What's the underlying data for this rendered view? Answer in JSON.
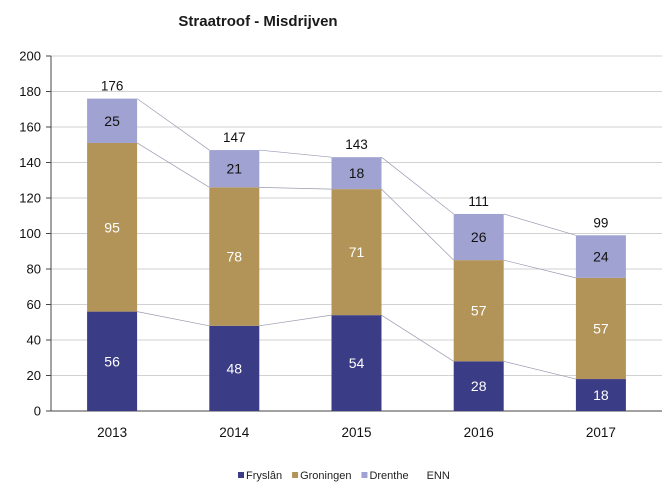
{
  "chart_data": {
    "type": "bar",
    "stacked": true,
    "title": "Straatroof - Misdrijven",
    "categories": [
      "2013",
      "2014",
      "2015",
      "2016",
      "2017"
    ],
    "series": [
      {
        "name": "Fryslân",
        "values": [
          56,
          48,
          54,
          28,
          18
        ],
        "color": "#3b3c86",
        "label_color": "#ffffff"
      },
      {
        "name": "Groningen",
        "values": [
          95,
          78,
          71,
          57,
          57
        ],
        "color": "#b39458",
        "label_color": "#ffffff"
      },
      {
        "name": "Drenthe",
        "values": [
          25,
          21,
          18,
          26,
          24
        ],
        "color": "#a0a2d2",
        "label_color": "#111111"
      }
    ],
    "totals": [
      176,
      147,
      143,
      111,
      99
    ],
    "extra_legend_entries": [
      "ENN"
    ],
    "ylim": [
      0,
      200
    ],
    "yticks": [
      0,
      20,
      40,
      60,
      80,
      100,
      120,
      140,
      160,
      180,
      200
    ],
    "grid": true,
    "connector_lines": true,
    "legend_position": "bottom",
    "xlabel": "",
    "ylabel": ""
  }
}
